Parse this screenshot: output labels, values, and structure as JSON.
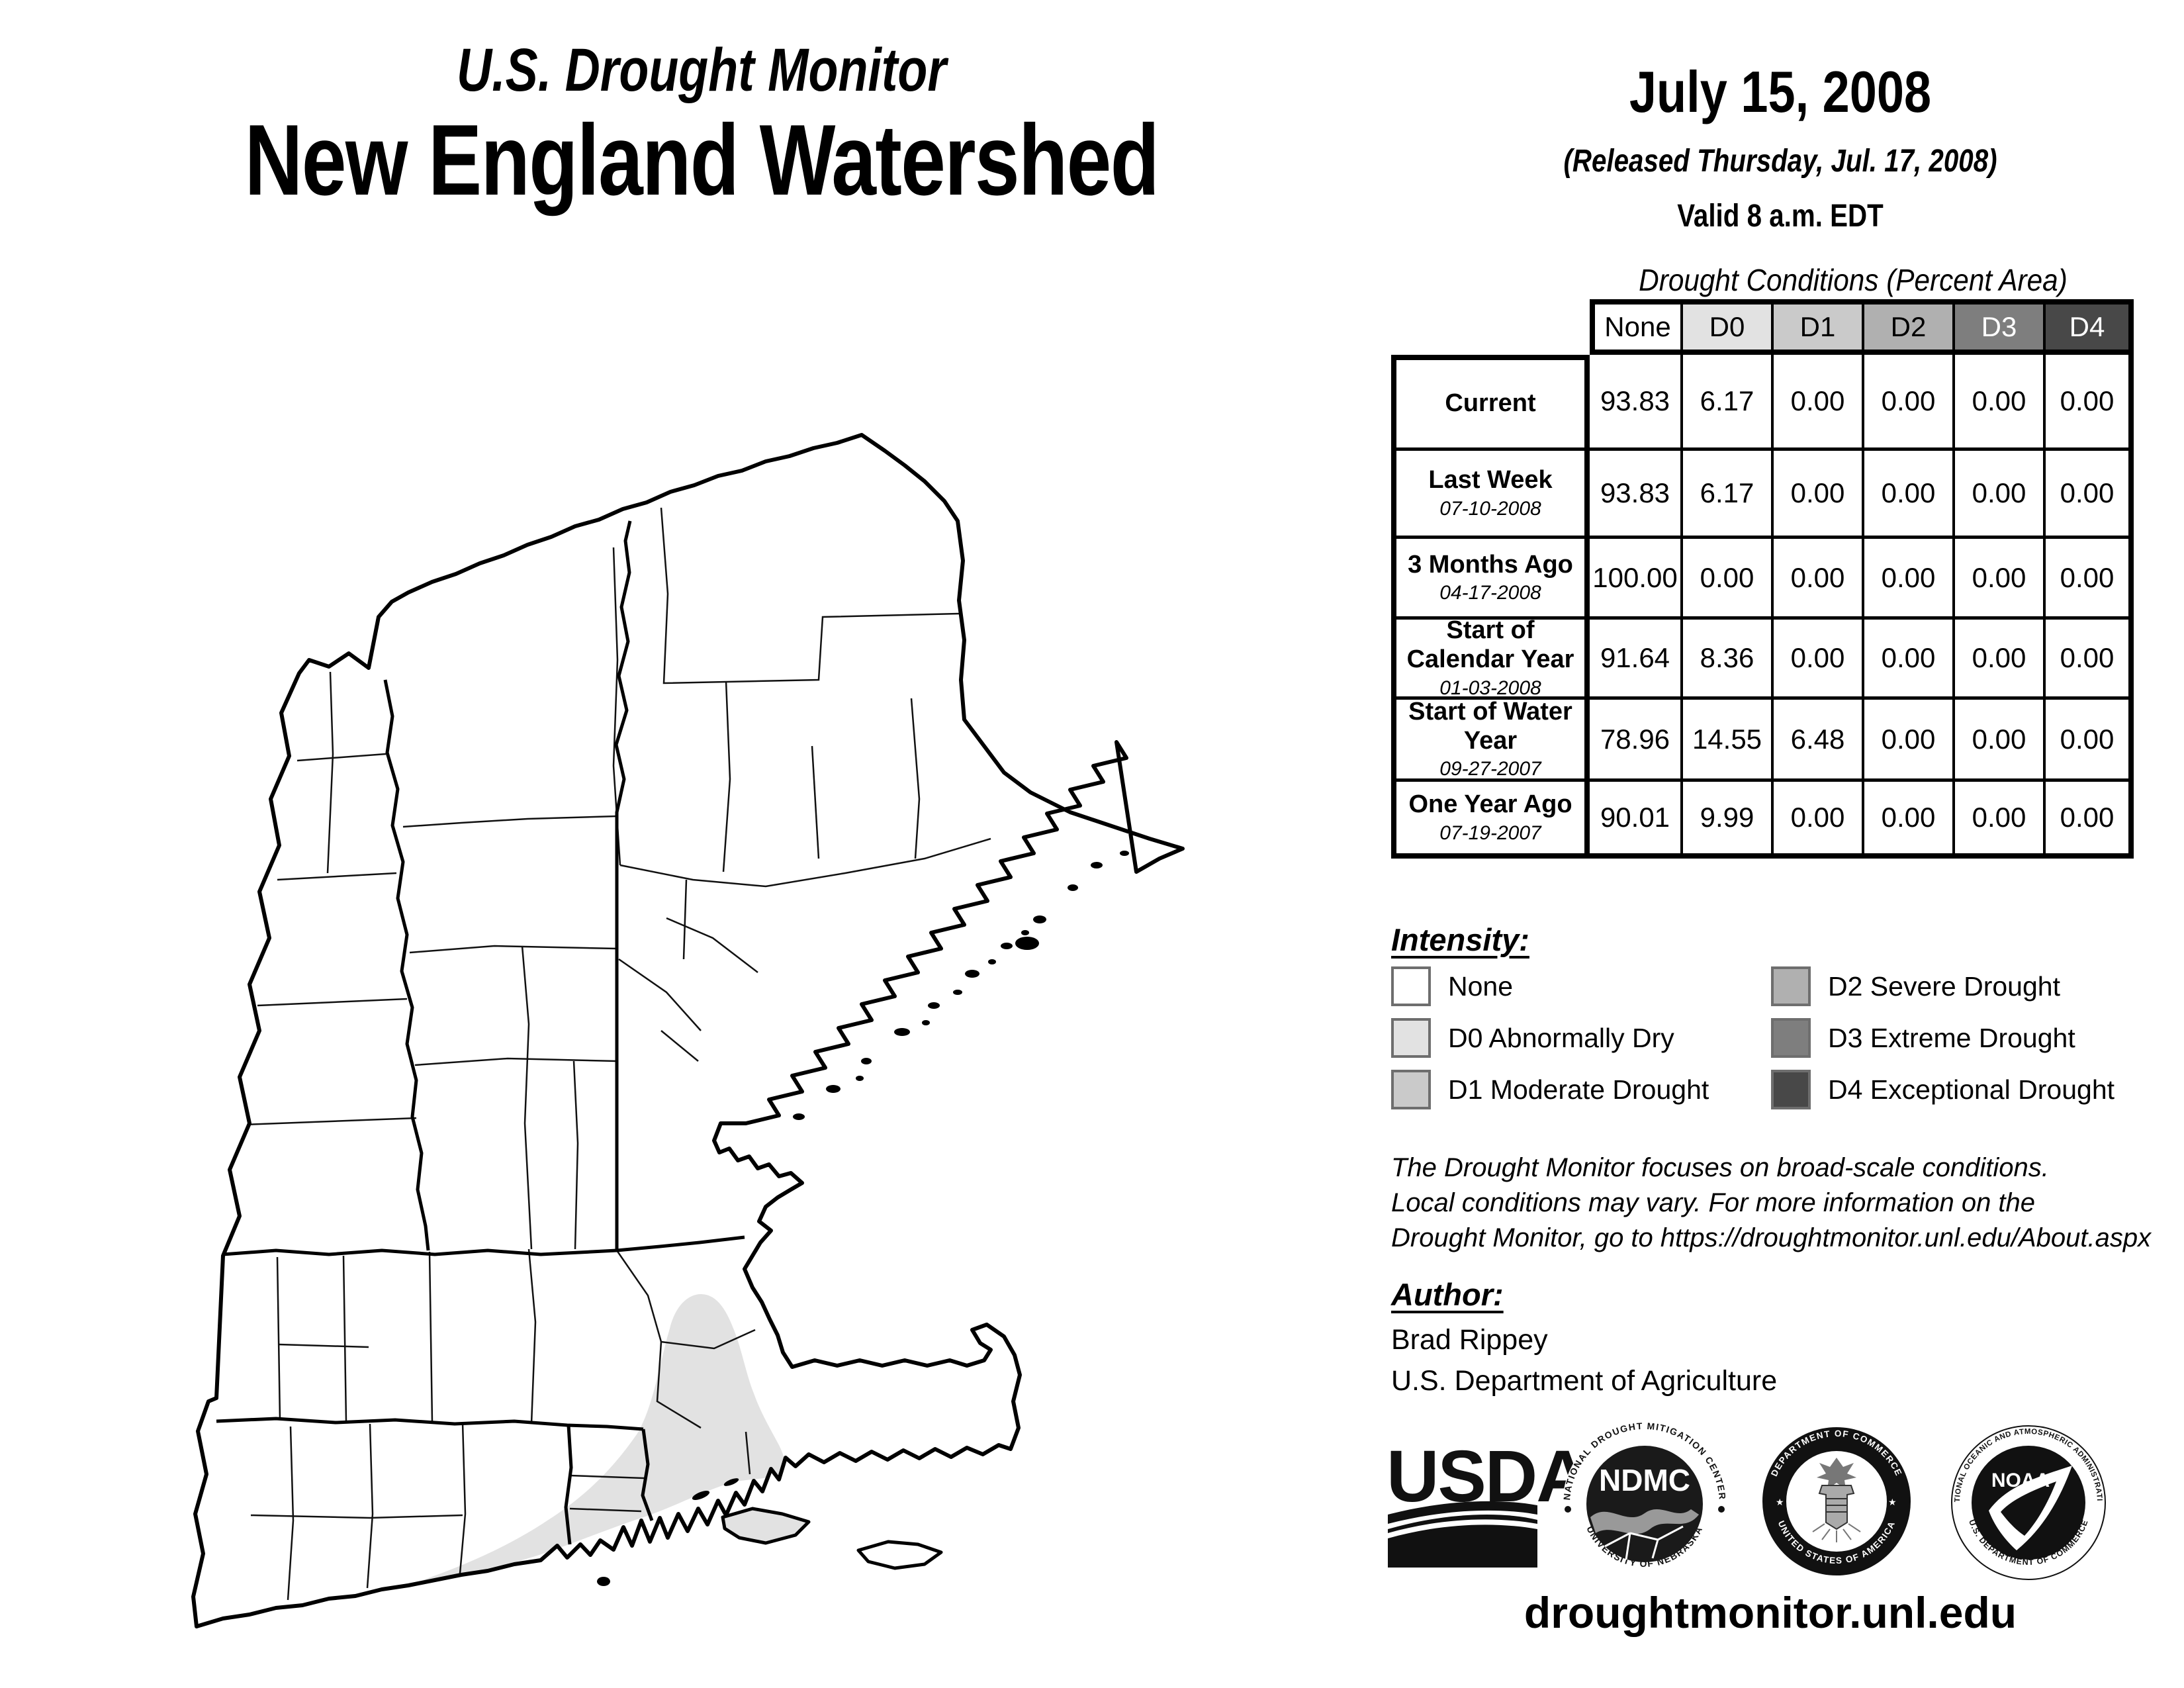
{
  "header": {
    "title_small": "U.S. Drought Monitor",
    "title_large": "New England Watershed",
    "date": "July 15, 2008",
    "released": "(Released Thursday, Jul. 17, 2008)",
    "valid": "Valid 8 a.m. EDT"
  },
  "table": {
    "title": "Drought Conditions (Percent Area)",
    "columns": [
      "None",
      "D0",
      "D1",
      "D2",
      "D3",
      "D4"
    ],
    "column_colors": [
      "#ffffff",
      "#e2e2e2",
      "#cacaca",
      "#b0b0b0",
      "#7e7e7e",
      "#484848"
    ],
    "column_text_colors": [
      "#000000",
      "#000000",
      "#000000",
      "#000000",
      "#ffffff",
      "#ffffff"
    ],
    "rows": [
      {
        "label": "Current",
        "date": "",
        "values": [
          "93.83",
          "6.17",
          "0.00",
          "0.00",
          "0.00",
          "0.00"
        ]
      },
      {
        "label": "Last Week",
        "date": "07-10-2008",
        "values": [
          "93.83",
          "6.17",
          "0.00",
          "0.00",
          "0.00",
          "0.00"
        ]
      },
      {
        "label": "3 Months Ago",
        "date": "04-17-2008",
        "values": [
          "100.00",
          "0.00",
          "0.00",
          "0.00",
          "0.00",
          "0.00"
        ]
      },
      {
        "label": "Start of Calendar Year",
        "date": "01-03-2008",
        "values": [
          "91.64",
          "8.36",
          "0.00",
          "0.00",
          "0.00",
          "0.00"
        ]
      },
      {
        "label": "Start of Water Year",
        "date": "09-27-2007",
        "values": [
          "78.96",
          "14.55",
          "6.48",
          "0.00",
          "0.00",
          "0.00"
        ]
      },
      {
        "label": "One Year Ago",
        "date": "07-19-2007",
        "values": [
          "90.01",
          "9.99",
          "0.00",
          "0.00",
          "0.00",
          "0.00"
        ]
      }
    ]
  },
  "legend": {
    "title": "Intensity:",
    "items": [
      {
        "label": "None",
        "color": "#ffffff"
      },
      {
        "label": "D0 Abnormally Dry",
        "color": "#e2e2e2"
      },
      {
        "label": "D1 Moderate Drought",
        "color": "#cacaca"
      },
      {
        "label": "D2 Severe Drought",
        "color": "#b0b0b0"
      },
      {
        "label": "D3 Extreme Drought",
        "color": "#7e7e7e"
      },
      {
        "label": "D4 Exceptional Drought",
        "color": "#484848"
      }
    ]
  },
  "disclaimer": {
    "line1": "The Drought Monitor focuses on broad-scale conditions.",
    "line2": "Local conditions may vary. For more information on the",
    "line3": "Drought Monitor, go to https://droughtmonitor.unl.edu/About.aspx"
  },
  "author": {
    "title": "Author:",
    "name": "Brad Rippey",
    "org": "U.S. Department of Agriculture"
  },
  "footer": {
    "url": "droughtmonitor.unl.edu"
  },
  "logos": {
    "usda": "USDA",
    "ndmc_center": "NDMC",
    "ndmc_ring_top": "NATIONAL DROUGHT MITIGATION CENTER",
    "ndmc_ring_bottom": "UNIVERSITY OF NEBRASKA",
    "doc_ring_top": "DEPARTMENT OF COMMERCE",
    "doc_ring_bottom": "UNITED STATES OF AMERICA",
    "noaa_center": "NOAA",
    "noaa_ring_top": "NATIONAL OCEANIC AND ATMOSPHERIC ADMINISTRATION",
    "noaa_ring_bottom": "U.S. DEPARTMENT OF COMMERCE"
  },
  "map": {
    "region": "New England Watershed",
    "d0_area_location": "southeastern Massachusetts, Rhode Island and eastern Connecticut",
    "d0_color": "#e2e2e2"
  }
}
